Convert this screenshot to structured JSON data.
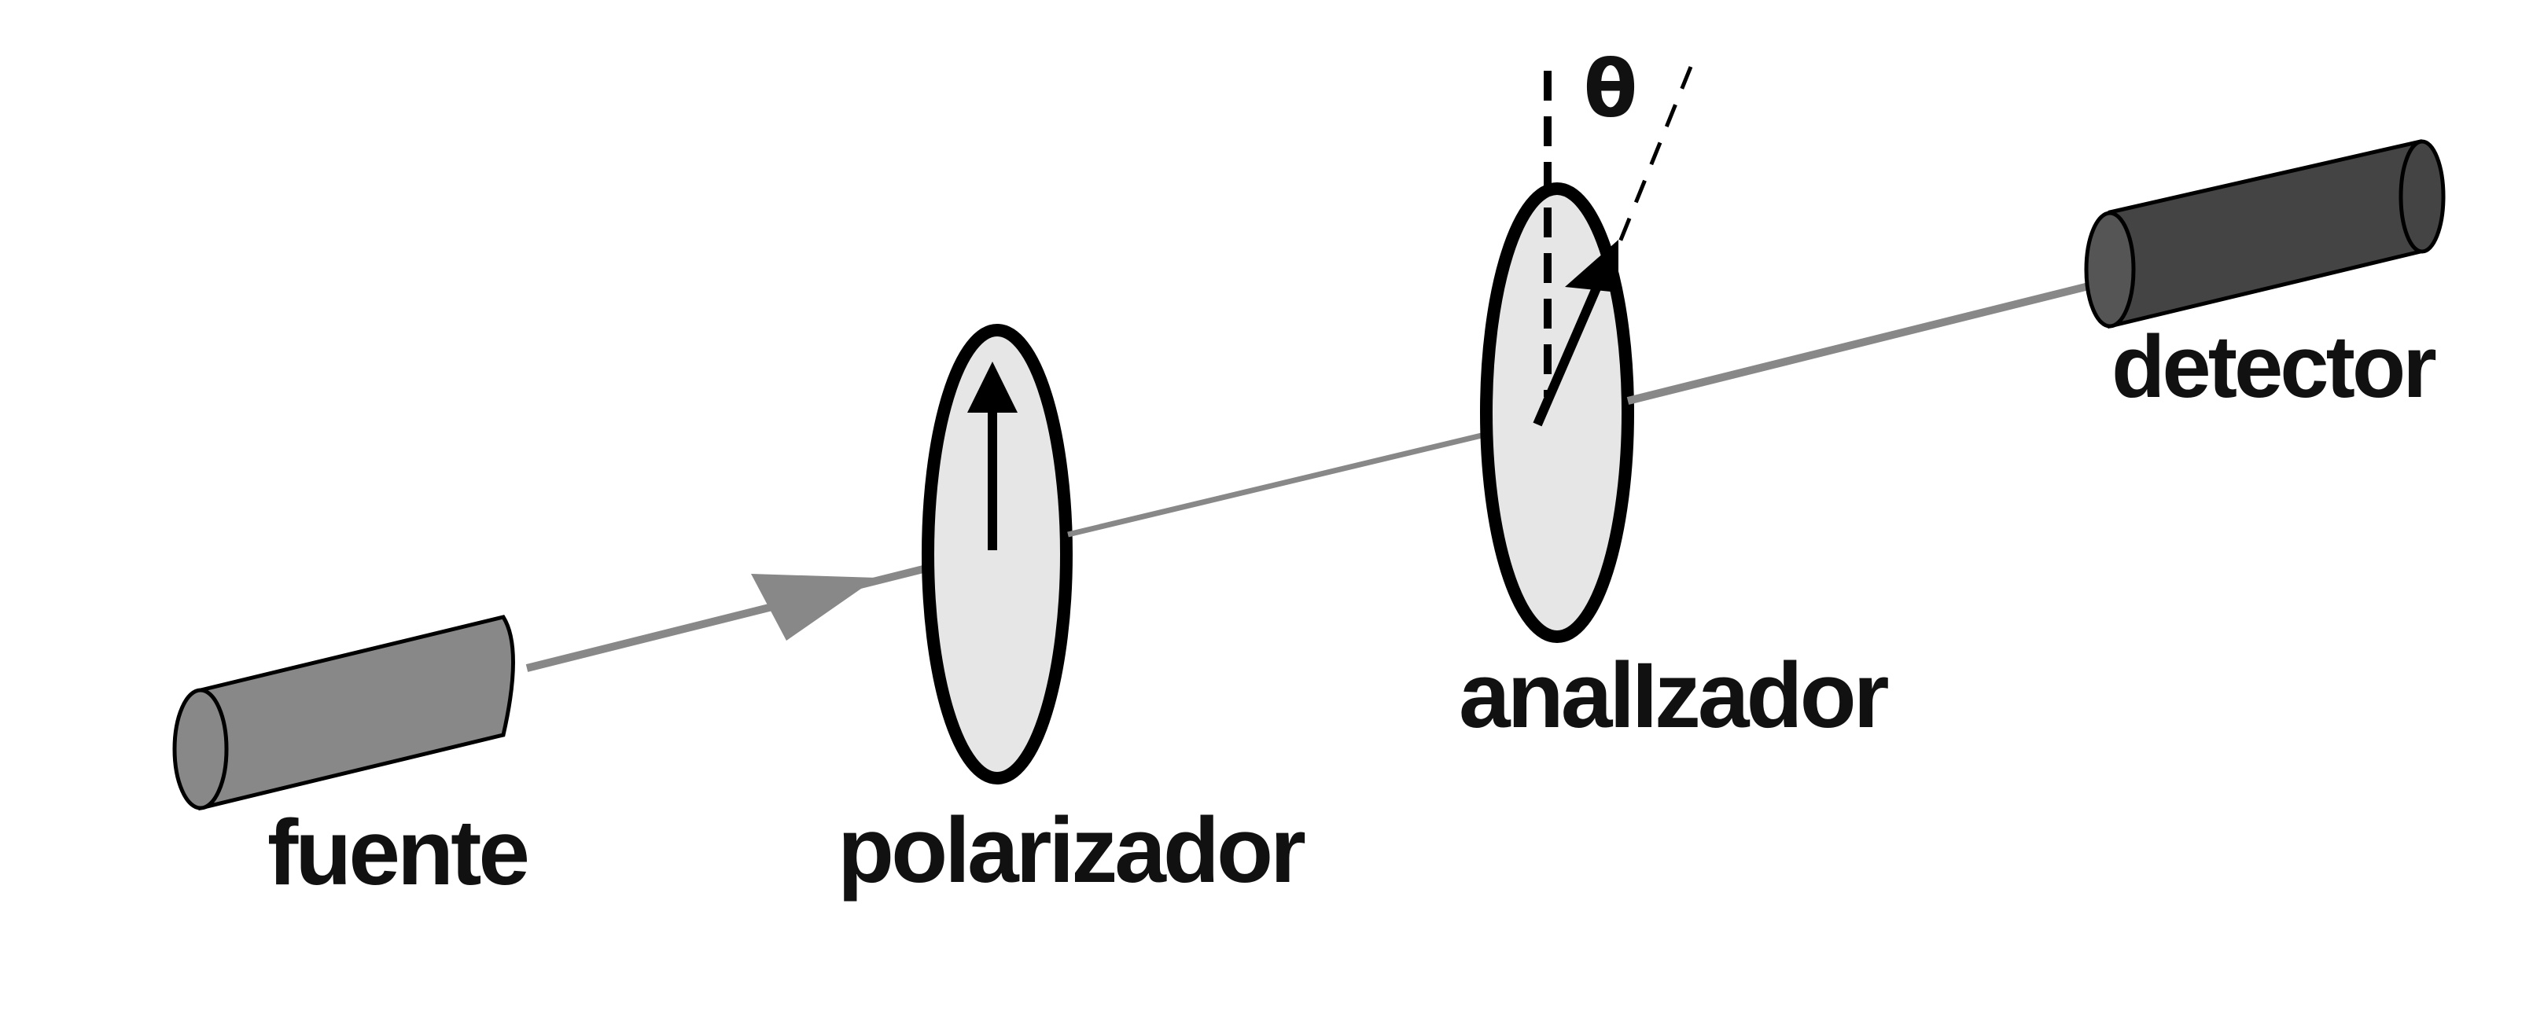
{
  "labels": {
    "source": "fuente",
    "polarizer": "polarizador",
    "analyzer": "analIzador",
    "detector": "detector",
    "angle": "θ"
  },
  "colors": {
    "background": "#ffffff",
    "source_body": "#888888",
    "detector_body": "#444444",
    "beam": "#888888",
    "disc_fill": "#e6e6e6",
    "outline": "#000000"
  }
}
